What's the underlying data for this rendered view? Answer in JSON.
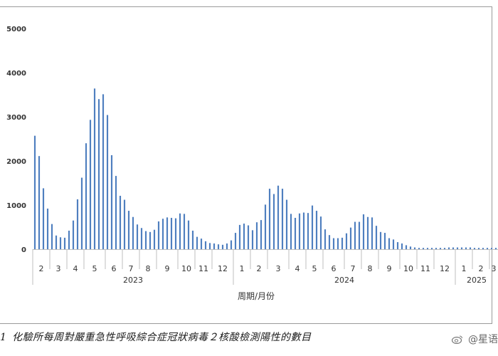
{
  "chart_data": {
    "type": "bar",
    "xlabel": "周期/月份",
    "ylabel": "",
    "ylim": [
      0,
      5000
    ],
    "yticks": [
      0,
      1000,
      2000,
      3000,
      4000,
      5000
    ],
    "grid": false,
    "bar_color": "#4f7fbf",
    "month_groups": [
      {
        "label": "2",
        "values": [
          2570,
          2110,
          1380,
          920
        ]
      },
      {
        "label": "3",
        "values": [
          570,
          310,
          270,
          260
        ]
      },
      {
        "label": "4",
        "values": [
          420,
          650,
          1130,
          1620
        ]
      },
      {
        "label": "5",
        "values": [
          2400,
          2930,
          3640,
          3400,
          3510
        ]
      },
      {
        "label": "6",
        "values": [
          3040,
          2130,
          1660,
          1210
        ]
      },
      {
        "label": "7",
        "values": [
          1120,
          870,
          730,
          560
        ]
      },
      {
        "label": "8",
        "values": [
          480,
          410,
          390,
          440
        ]
      },
      {
        "label": "9",
        "values": [
          630,
          690,
          720,
          710,
          700
        ]
      },
      {
        "label": "10",
        "values": [
          810,
          800,
          650,
          420
        ]
      },
      {
        "label": "11",
        "values": [
          280,
          240,
          180,
          140
        ]
      },
      {
        "label": "12",
        "values": [
          130,
          110,
          100,
          130,
          200
        ]
      },
      {
        "label": "1",
        "values": [
          370,
          550,
          580,
          540
        ]
      },
      {
        "label": "2",
        "values": [
          430,
          610,
          660,
          1010
        ]
      },
      {
        "label": "3",
        "values": [
          1370,
          1250,
          1440,
          1370,
          1120
        ]
      },
      {
        "label": "4",
        "values": [
          800,
          710,
          810,
          830
        ]
      },
      {
        "label": "5",
        "values": [
          820,
          990,
          870,
          740
        ]
      },
      {
        "label": "6",
        "values": [
          450,
          320,
          250,
          250,
          260
        ]
      },
      {
        "label": "7",
        "values": [
          360,
          490,
          620,
          620
        ]
      },
      {
        "label": "8",
        "values": [
          790,
          730,
          720,
          530
        ]
      },
      {
        "label": "9",
        "values": [
          390,
          370,
          250,
          220,
          160
        ]
      },
      {
        "label": "10",
        "values": [
          130,
          90,
          60,
          40
        ]
      },
      {
        "label": "11",
        "values": [
          30,
          30,
          30,
          30
        ]
      },
      {
        "label": "12",
        "values": [
          30,
          30,
          30,
          40,
          40
        ]
      },
      {
        "label": "1",
        "values": [
          40,
          40,
          40,
          40
        ]
      },
      {
        "label": "2",
        "values": [
          30,
          30,
          30,
          30
        ]
      },
      {
        "label": "3",
        "values": [
          30,
          30
        ]
      }
    ],
    "years": [
      {
        "label": "2023",
        "start": 0,
        "end": 10
      },
      {
        "label": "2024",
        "start": 11,
        "end": 22
      },
      {
        "label": "2025",
        "start": 23,
        "end": 25
      }
    ]
  },
  "caption": {
    "number": "1",
    "text": "化驗所每周對嚴重急性呼吸綜合症冠狀病毒２核酸檢測陽性的數目"
  },
  "watermark": {
    "text": "@星语"
  }
}
